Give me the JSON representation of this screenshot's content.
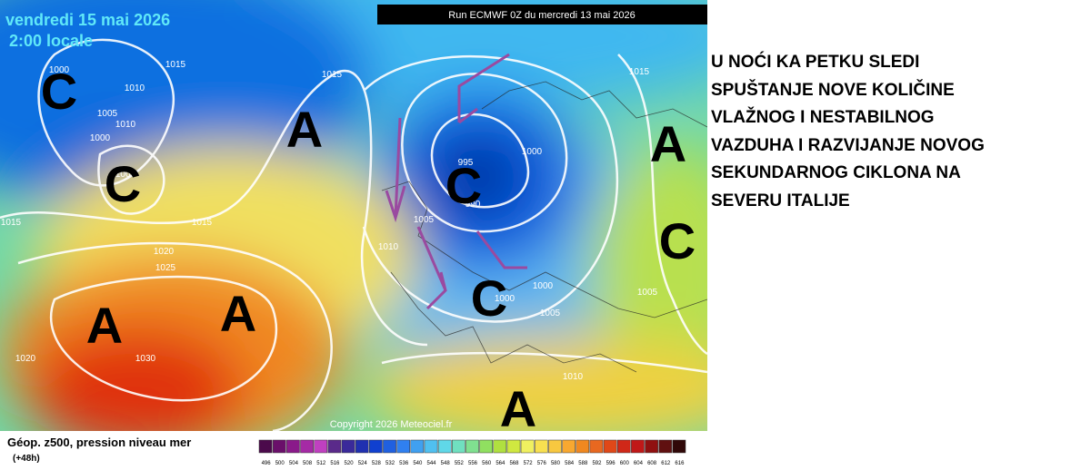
{
  "map": {
    "date": "vendredi 15 mai 2026",
    "time": "2:00 locale",
    "run": "Run ECMWF 0Z du mercredi 13 mai 2026",
    "copyright": "Copyright 2026 Meteociel.fr",
    "pressure_labels": [
      "1000",
      "1010",
      "1005",
      "1010",
      "1000",
      "1015",
      "1015",
      "1000",
      "1015",
      "1015",
      "1020",
      "1025",
      "995",
      "990",
      "1000",
      "1005",
      "1010",
      "1000",
      "1000",
      "1005",
      "1015",
      "1005",
      "1010",
      "1030",
      "1020"
    ],
    "systems": [
      "C",
      "C",
      "A",
      "A",
      "A",
      "C",
      "C",
      "A",
      "C",
      "A"
    ],
    "caption": "Géop. z500, pression niveau mer",
    "lead": "(+48h)",
    "colorbar": {
      "labels": [
        496,
        500,
        504,
        508,
        512,
        516,
        520,
        524,
        528,
        532,
        536,
        540,
        544,
        548,
        552,
        556,
        560,
        564,
        568,
        572,
        576,
        580,
        584,
        588,
        592,
        596,
        600,
        604,
        608,
        612,
        616
      ],
      "colors": [
        "#4b0a4b",
        "#6a0f6a",
        "#8a1a8a",
        "#a52aa5",
        "#c040c0",
        "#5a2a8a",
        "#3a2a9a",
        "#2030b0",
        "#1040d0",
        "#2060e0",
        "#3080f0",
        "#40a0f0",
        "#50c0f0",
        "#60d8e8",
        "#70e0c0",
        "#80e090",
        "#90e060",
        "#b0e040",
        "#d0e840",
        "#f0f060",
        "#f8e050",
        "#f8c840",
        "#f8a830",
        "#f08820",
        "#e86820",
        "#e04818",
        "#d02818",
        "#c01818",
        "#901010",
        "#601010",
        "#300808"
      ]
    }
  },
  "note": {
    "lines": [
      "U NOĆI KA PETKU SLEDI",
      "SPUŠTANJE NOVE KOLIČINE",
      "VLAŽNOG I NESTABILNOG",
      "VAZDUHA I RAZVIJANJE NOVOG",
      "SEKUNDARNOG CIKLONA NA",
      "SEVERU ITALIJE"
    ]
  }
}
